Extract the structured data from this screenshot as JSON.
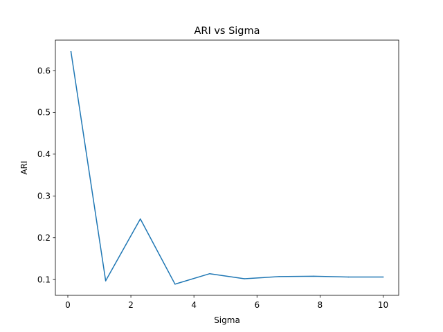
{
  "chart_data": {
    "type": "line",
    "title": "ARI vs Sigma",
    "xlabel": "Sigma",
    "ylabel": "ARI",
    "x": [
      0.1,
      1.2,
      2.3,
      3.4,
      4.5,
      5.6,
      6.7,
      7.8,
      8.9,
      10.0
    ],
    "series": [
      {
        "name": "",
        "values": [
          0.645,
          0.097,
          0.245,
          0.089,
          0.114,
          0.102,
          0.107,
          0.108,
          0.106,
          0.106
        ]
      }
    ],
    "xlim": [
      -0.395,
      10.495
    ],
    "ylim": [
      0.0622,
      0.6728
    ],
    "xticks": [
      0,
      2,
      4,
      6,
      8,
      10
    ],
    "yticks": [
      0.1,
      0.2,
      0.3,
      0.4,
      0.5,
      0.6
    ],
    "xtick_labels": [
      "0",
      "2",
      "4",
      "6",
      "8",
      "10"
    ],
    "ytick_labels": [
      "0.1",
      "0.2",
      "0.3",
      "0.4",
      "0.5",
      "0.6"
    ],
    "grid": false,
    "legend": "none",
    "line_color": "#1f77b4"
  }
}
